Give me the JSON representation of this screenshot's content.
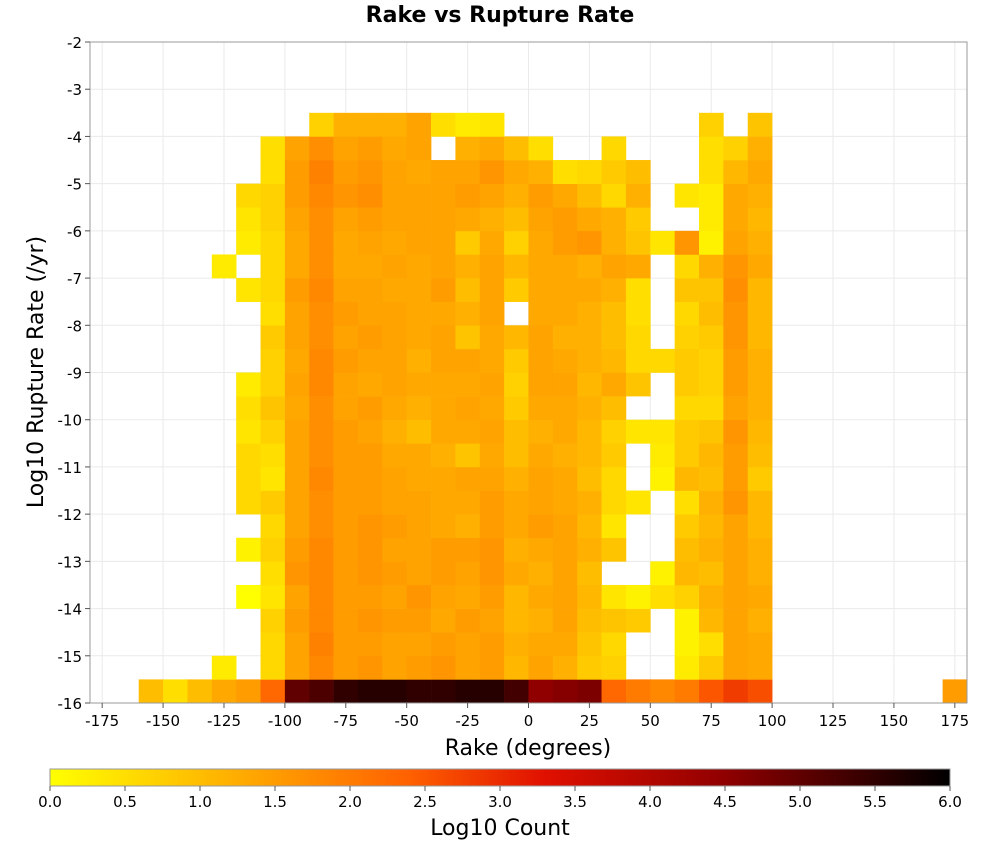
{
  "chart_data": {
    "type": "heatmap",
    "title": "Rake vs Rupture Rate",
    "xlabel": "Rake (degrees)",
    "ylabel": "Log10 Rupture Rate (/yr)",
    "xlim": [
      -180,
      180
    ],
    "ylim": [
      -16,
      -2
    ],
    "x_ticks": [
      -175,
      -150,
      -125,
      -100,
      -75,
      -50,
      -25,
      0,
      25,
      50,
      75,
      100,
      125,
      150,
      175
    ],
    "y_ticks": [
      -2,
      -3,
      -4,
      -5,
      -6,
      -7,
      -8,
      -9,
      -10,
      -11,
      -12,
      -13,
      -14,
      -15,
      -16
    ],
    "grid": true,
    "colorbar": {
      "label": "Log10 Count",
      "min": 0.0,
      "max": 6.0,
      "ticks": [
        "0.0",
        "0.5",
        "1.0",
        "1.5",
        "2.0",
        "2.5",
        "3.0",
        "3.5",
        "4.0",
        "4.5",
        "5.0",
        "5.5",
        "6.0"
      ],
      "colors": [
        "#ffff00",
        "#ffb000",
        "#ff6000",
        "#e01000",
        "#900000",
        "#000000"
      ]
    },
    "bin_width_x": 10,
    "bin_height_y": 0.5,
    "x_bin_centers": [
      -155,
      -145,
      -135,
      -125,
      -115,
      -105,
      -95,
      -85,
      -75,
      -65,
      -55,
      -45,
      -35,
      -25,
      -15,
      -5,
      5,
      15,
      25,
      35,
      45,
      55,
      65,
      75,
      85,
      95,
      175
    ],
    "y_bin_centers": [
      -15.75,
      -15.25,
      -14.75,
      -14.25,
      -13.75,
      -13.25,
      -12.75,
      -12.25,
      -11.75,
      -11.25,
      -10.75,
      -10.25,
      -9.75,
      -9.25,
      -8.75,
      -8.25,
      -7.75,
      -7.25,
      -6.75,
      -6.25,
      -5.75,
      -5.25,
      -4.75,
      -4.25,
      -3.75
    ],
    "row_labels_note": "values[r][c]: r indexes y_bin_centers, c indexes x_bin_centers; null = empty bin",
    "values": [
      [
        1.0,
        0.5,
        1.0,
        1.3,
        1.5,
        2.3,
        5.0,
        5.2,
        5.5,
        5.6,
        5.6,
        5.5,
        5.5,
        5.6,
        5.6,
        5.3,
        4.5,
        4.6,
        4.7,
        2.3,
        2.0,
        1.8,
        2.0,
        2.5,
        2.8,
        2.6,
        1.5
      ],
      [
        null,
        null,
        null,
        0.3,
        null,
        0.6,
        1.4,
        1.8,
        1.5,
        1.6,
        1.4,
        1.5,
        1.6,
        1.4,
        1.5,
        1.1,
        1.4,
        1.2,
        0.8,
        0.7,
        null,
        null,
        0.3,
        0.8,
        1.4,
        1.3,
        null
      ],
      [
        null,
        null,
        null,
        null,
        null,
        0.6,
        1.4,
        1.9,
        1.5,
        1.5,
        1.4,
        1.4,
        1.5,
        1.4,
        1.5,
        1.2,
        1.3,
        1.3,
        0.9,
        0.6,
        null,
        null,
        0.2,
        0.5,
        1.4,
        1.3,
        null
      ],
      [
        null,
        null,
        null,
        null,
        null,
        0.7,
        1.5,
        1.8,
        1.5,
        1.6,
        1.5,
        1.5,
        1.3,
        1.5,
        1.4,
        1.1,
        1.2,
        1.4,
        1.0,
        0.9,
        0.8,
        null,
        0.2,
        1.1,
        1.4,
        1.2,
        null
      ],
      [
        null,
        null,
        null,
        null,
        0.0,
        0.4,
        1.4,
        1.8,
        1.5,
        1.5,
        1.4,
        1.6,
        1.4,
        1.3,
        1.5,
        1.1,
        1.3,
        1.4,
        1.1,
        0.4,
        0.2,
        0.5,
        0.7,
        1.2,
        1.4,
        1.3,
        null
      ],
      [
        null,
        null,
        null,
        null,
        null,
        0.5,
        1.6,
        1.8,
        1.5,
        1.6,
        1.5,
        1.4,
        1.5,
        1.4,
        1.6,
        1.3,
        1.2,
        1.4,
        1.0,
        null,
        null,
        0.2,
        1.1,
        1.0,
        1.4,
        1.2,
        null
      ],
      [
        null,
        null,
        null,
        null,
        0.2,
        0.7,
        1.5,
        1.8,
        1.5,
        1.6,
        1.4,
        1.4,
        1.5,
        1.5,
        1.6,
        1.2,
        1.3,
        1.4,
        1.2,
        0.9,
        null,
        null,
        1.0,
        1.2,
        1.4,
        1.2,
        null
      ],
      [
        null,
        null,
        null,
        null,
        null,
        0.6,
        1.4,
        1.7,
        1.5,
        1.6,
        1.5,
        1.4,
        1.3,
        1.2,
        1.5,
        1.3,
        1.5,
        1.4,
        1.1,
        0.4,
        null,
        null,
        0.8,
        1.1,
        1.4,
        1.1,
        null
      ],
      [
        null,
        null,
        null,
        null,
        0.6,
        0.8,
        1.4,
        1.7,
        1.5,
        1.5,
        1.4,
        1.4,
        1.3,
        1.3,
        1.5,
        1.3,
        1.4,
        1.3,
        1.2,
        0.6,
        0.4,
        null,
        0.5,
        1.2,
        1.6,
        1.1,
        null
      ],
      [
        null,
        null,
        null,
        null,
        0.6,
        0.4,
        1.4,
        1.8,
        1.5,
        1.5,
        1.4,
        1.3,
        1.3,
        1.4,
        1.4,
        1.2,
        1.4,
        1.3,
        1.0,
        0.6,
        null,
        0.2,
        1.1,
        1.0,
        1.5,
        0.8,
        null
      ],
      [
        null,
        null,
        null,
        null,
        0.6,
        0.5,
        1.4,
        1.7,
        1.5,
        1.5,
        1.3,
        1.3,
        1.2,
        0.9,
        1.3,
        1.0,
        1.3,
        1.2,
        1.1,
        0.8,
        null,
        0.3,
        0.8,
        1.1,
        1.5,
        1.0,
        null
      ],
      [
        null,
        null,
        null,
        null,
        0.4,
        0.7,
        1.4,
        1.7,
        1.5,
        1.4,
        1.2,
        1.0,
        1.3,
        1.3,
        1.4,
        1.0,
        1.2,
        1.3,
        1.1,
        0.7,
        0.4,
        0.4,
        0.8,
        0.9,
        1.6,
        1.1,
        null
      ],
      [
        null,
        null,
        null,
        null,
        0.5,
        0.9,
        1.3,
        1.7,
        1.4,
        1.5,
        1.3,
        1.2,
        1.3,
        1.4,
        1.3,
        0.8,
        1.3,
        1.3,
        1.2,
        1.0,
        null,
        null,
        0.6,
        0.6,
        1.4,
        1.2,
        null
      ],
      [
        null,
        null,
        null,
        null,
        0.3,
        0.7,
        1.4,
        1.8,
        1.4,
        1.3,
        1.4,
        1.3,
        1.3,
        1.3,
        1.4,
        0.7,
        1.4,
        1.4,
        1.1,
        1.3,
        0.9,
        null,
        0.8,
        0.7,
        1.5,
        1.2,
        null
      ],
      [
        null,
        null,
        null,
        null,
        null,
        0.7,
        1.3,
        1.8,
        1.5,
        1.4,
        1.4,
        1.2,
        1.4,
        1.4,
        1.3,
        0.8,
        1.4,
        1.3,
        1.2,
        1.1,
        0.6,
        0.6,
        0.8,
        0.7,
        1.5,
        1.2,
        null
      ],
      [
        null,
        null,
        null,
        null,
        null,
        0.8,
        1.4,
        1.7,
        1.4,
        1.5,
        1.4,
        1.3,
        1.4,
        0.9,
        1.3,
        1.1,
        1.4,
        1.2,
        1.2,
        1.0,
        0.6,
        null,
        0.7,
        0.8,
        1.6,
        1.1,
        null
      ],
      [
        null,
        null,
        null,
        null,
        null,
        0.5,
        1.4,
        1.7,
        1.5,
        1.4,
        1.4,
        1.3,
        1.3,
        1.2,
        1.4,
        null,
        1.3,
        1.3,
        1.2,
        1.0,
        0.5,
        null,
        0.6,
        1.0,
        1.6,
        1.1,
        null
      ],
      [
        null,
        null,
        null,
        null,
        0.4,
        0.6,
        1.5,
        1.8,
        1.4,
        1.4,
        1.3,
        1.3,
        1.5,
        1.0,
        1.4,
        0.8,
        1.3,
        1.3,
        1.3,
        1.2,
        0.5,
        null,
        0.9,
        0.9,
        1.7,
        1.1,
        null
      ],
      [
        null,
        null,
        null,
        0.3,
        null,
        0.6,
        1.3,
        1.7,
        1.3,
        1.3,
        1.4,
        1.3,
        1.4,
        1.2,
        1.4,
        1.1,
        1.3,
        1.3,
        1.2,
        1.4,
        1.3,
        null,
        0.6,
        1.2,
        1.6,
        1.3,
        null
      ],
      [
        null,
        null,
        null,
        null,
        0.3,
        0.6,
        1.3,
        1.7,
        1.3,
        1.4,
        1.3,
        1.4,
        1.4,
        0.8,
        1.3,
        0.7,
        1.3,
        1.5,
        1.6,
        1.2,
        0.9,
        0.4,
        1.6,
        0.2,
        1.4,
        1.2,
        null
      ],
      [
        null,
        null,
        null,
        null,
        0.4,
        0.7,
        1.4,
        1.7,
        1.4,
        1.5,
        1.4,
        1.4,
        1.4,
        1.3,
        1.2,
        1.0,
        1.4,
        1.5,
        1.3,
        1.2,
        0.8,
        null,
        null,
        0.3,
        1.3,
        1.1,
        null
      ],
      [
        null,
        null,
        null,
        null,
        0.6,
        0.7,
        1.5,
        1.8,
        1.6,
        1.7,
        1.4,
        1.4,
        1.4,
        1.5,
        1.4,
        1.2,
        1.5,
        1.3,
        1.0,
        0.6,
        1.2,
        null,
        0.4,
        0.3,
        1.3,
        1.2,
        null
      ],
      [
        null,
        null,
        null,
        null,
        null,
        0.5,
        1.5,
        1.9,
        1.5,
        1.6,
        1.4,
        1.3,
        1.4,
        1.4,
        1.6,
        1.3,
        1.2,
        0.5,
        0.6,
        0.8,
        1.0,
        null,
        null,
        0.5,
        1.1,
        1.3,
        null
      ],
      [
        null,
        null,
        null,
        null,
        null,
        0.5,
        1.4,
        1.7,
        1.4,
        1.5,
        1.3,
        1.4,
        null,
        1.2,
        1.3,
        1.0,
        0.5,
        null,
        null,
        0.6,
        null,
        null,
        null,
        0.5,
        0.7,
        1.2,
        null
      ],
      [
        null,
        null,
        null,
        null,
        null,
        null,
        null,
        0.7,
        1.2,
        1.2,
        1.2,
        1.4,
        0.5,
        0.3,
        0.4,
        null,
        null,
        null,
        null,
        null,
        null,
        null,
        null,
        0.7,
        null,
        0.9,
        null
      ]
    ]
  }
}
